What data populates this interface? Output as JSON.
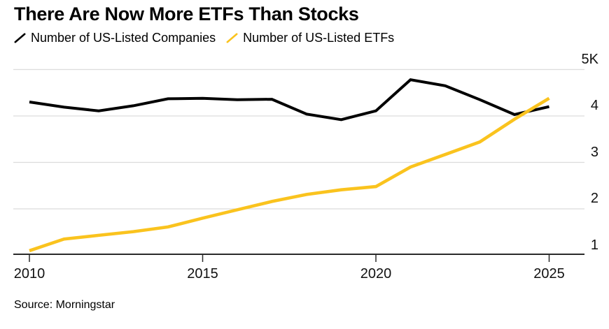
{
  "chart_data": {
    "type": "line",
    "title": "There Are Now More ETFs Than Stocks",
    "x": [
      2010,
      2011,
      2012,
      2013,
      2014,
      2015,
      2016,
      2017,
      2018,
      2019,
      2020,
      2021,
      2022,
      2023,
      2024,
      2025
    ],
    "series": [
      {
        "name": "Number of US-Listed Companies",
        "color": "#000000",
        "values": [
          4300,
          4190,
          4110,
          4220,
          4370,
          4380,
          4350,
          4360,
          4040,
          3920,
          4110,
          4780,
          4650,
          4350,
          4030,
          4200
        ]
      },
      {
        "name": "Number of US-Listed ETFs",
        "color": "#FAC31E",
        "values": [
          1100,
          1350,
          1430,
          1510,
          1610,
          1800,
          1980,
          2160,
          2310,
          2410,
          2480,
          2900,
          3170,
          3440,
          3930,
          4380
        ]
      }
    ],
    "xticks": [
      2010,
      2015,
      2020,
      2025
    ],
    "yticks": [
      {
        "value": 1000,
        "label": "1"
      },
      {
        "value": 2000,
        "label": "2"
      },
      {
        "value": 3000,
        "label": "3"
      },
      {
        "value": 4000,
        "label": "4"
      },
      {
        "value": 5000,
        "label": "5K"
      }
    ],
    "ylim": [
      1000,
      5000
    ],
    "grid": "horizontal",
    "legend_position": "top",
    "axis_color": "#2a2a2a",
    "gridline_color": "#dcdcdc"
  },
  "footer": {
    "source": "Source: Morningstar"
  }
}
